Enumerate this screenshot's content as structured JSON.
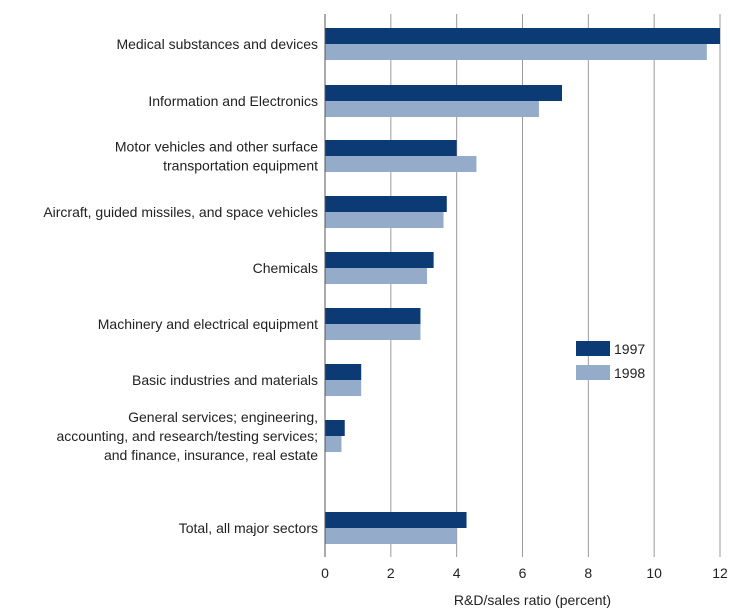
{
  "chart_data": {
    "type": "bar",
    "orientation": "horizontal",
    "categories": [
      [
        "Medical substances and devices"
      ],
      [
        "Information and Electronics"
      ],
      [
        "Motor vehicles and other surface",
        "transportation equipment"
      ],
      [
        "Aircraft, guided missiles, and space vehicles"
      ],
      [
        "Chemicals"
      ],
      [
        "Machinery and electrical equipment"
      ],
      [
        "Basic industries and materials"
      ],
      [
        "General services; engineering,",
        "accounting, and research/testing services;",
        "and finance, insurance, real estate"
      ],
      [
        "Total, all major sectors"
      ]
    ],
    "series": [
      {
        "name": "1997",
        "color": "#0b3a75",
        "values": [
          12.0,
          7.2,
          4.0,
          3.7,
          3.3,
          2.9,
          1.1,
          0.6,
          4.3
        ]
      },
      {
        "name": "1998",
        "color": "#94abc9",
        "values": [
          11.6,
          6.5,
          4.6,
          3.6,
          3.1,
          2.9,
          1.1,
          0.5,
          4.0
        ]
      }
    ],
    "xlabel": "R&D/sales ratio (percent)",
    "xlim": [
      0,
      12
    ],
    "xticks": [
      "0",
      "2",
      "4",
      "6",
      "8",
      "10",
      "12"
    ],
    "grid": true,
    "legend_position": "right-middle"
  }
}
